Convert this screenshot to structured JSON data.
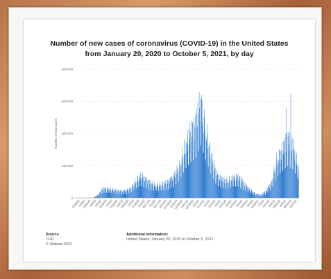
{
  "chart_data": {
    "type": "bar",
    "title": "Number of new cases of coronavirus (COVID-19) in the United States from January 20, 2020 to October 5, 2021, by day",
    "ylabel": "Number of new cases",
    "xlabel": "",
    "ylim": [
      0,
      400000
    ],
    "y_ticks": [
      0,
      100000,
      200000,
      300000,
      400000
    ],
    "y_tick_labels": [
      "0",
      "100 000",
      "200 000",
      "300 000",
      "400 000"
    ],
    "x_tick_labels": [
      "1/20/20",
      "2/5/20",
      "2/20/20",
      "3/6/20",
      "4/2/20",
      "4/18/20",
      "5/3/20",
      "5/18/20",
      "6/2/20",
      "6/18/20",
      "7/3/20",
      "7/18/20",
      "8/2/20",
      "8/17/20",
      "9/2/20",
      "9/17/20",
      "10/3/20",
      "10/18/20",
      "11/3/20",
      "11/18/20",
      "12/3/20",
      "12/18/20",
      "1/2/21",
      "1/14/21",
      "2/1/21",
      "2/16/21",
      "3/3/21",
      "3/19/21",
      "4/3/21",
      "4/19/21",
      "5/4/21",
      "5/20/21",
      "6/4/21",
      "6/20/21",
      "7/5/21",
      "7/21/21",
      "8/4/21",
      "8/20/21",
      "9/4/21",
      "9/20/21",
      "10/5/21"
    ],
    "series": [
      {
        "values_description": "daily new cases",
        "keypoints": [
          {
            "x": "1/20/20",
            "y": 0
          },
          {
            "x": "3/6/20",
            "y": 500
          },
          {
            "x": "3/20/20",
            "y": 12000
          },
          {
            "x": "4/2/20",
            "y": 30000
          },
          {
            "x": "4/18/20",
            "y": 30000
          },
          {
            "x": "5/3/20",
            "y": 27000
          },
          {
            "x": "5/18/20",
            "y": 22000
          },
          {
            "x": "6/2/20",
            "y": 21000
          },
          {
            "x": "6/18/20",
            "y": 30000
          },
          {
            "x": "7/3/20",
            "y": 55000
          },
          {
            "x": "7/18/20",
            "y": 70000
          },
          {
            "x": "8/2/20",
            "y": 55000
          },
          {
            "x": "8/17/20",
            "y": 45000
          },
          {
            "x": "9/2/20",
            "y": 40000
          },
          {
            "x": "9/17/20",
            "y": 45000
          },
          {
            "x": "10/3/20",
            "y": 50000
          },
          {
            "x": "10/18/20",
            "y": 65000
          },
          {
            "x": "11/3/20",
            "y": 100000
          },
          {
            "x": "11/18/20",
            "y": 160000
          },
          {
            "x": "12/3/20",
            "y": 200000
          },
          {
            "x": "12/18/20",
            "y": 220000
          },
          {
            "x": "1/2/21",
            "y": 300000
          },
          {
            "x": "1/14/21",
            "y": 230000
          },
          {
            "x": "2/1/21",
            "y": 130000
          },
          {
            "x": "2/16/21",
            "y": 70000
          },
          {
            "x": "3/3/21",
            "y": 58000
          },
          {
            "x": "3/19/21",
            "y": 55000
          },
          {
            "x": "4/3/21",
            "y": 65000
          },
          {
            "x": "4/19/21",
            "y": 65000
          },
          {
            "x": "5/4/21",
            "y": 45000
          },
          {
            "x": "5/20/21",
            "y": 28000
          },
          {
            "x": "6/4/21",
            "y": 15000
          },
          {
            "x": "6/20/21",
            "y": 10000
          },
          {
            "x": "7/5/21",
            "y": 20000
          },
          {
            "x": "7/21/21",
            "y": 50000
          },
          {
            "x": "8/4/21",
            "y": 120000
          },
          {
            "x": "8/20/21",
            "y": 150000
          },
          {
            "x": "9/4/21",
            "y": 180000
          },
          {
            "x": "9/20/21",
            "y": 160000
          },
          {
            "x": "10/5/21",
            "y": 100000
          }
        ],
        "spikes": [
          {
            "x": "1/4/21",
            "y": 305000
          },
          {
            "x": "8/31/21",
            "y": 280000
          },
          {
            "x": "9/13/21",
            "y": 325000
          }
        ]
      }
    ],
    "grid": true,
    "legend": "none",
    "bar_color": "#2f7dd1"
  },
  "footer": {
    "source_heading": "Source",
    "source_line1": "CHD",
    "source_line2": "© Statista 2021",
    "info_heading": "Additional Information:",
    "info_line": "United States; January 20, 2020 to October 5, 2021"
  }
}
